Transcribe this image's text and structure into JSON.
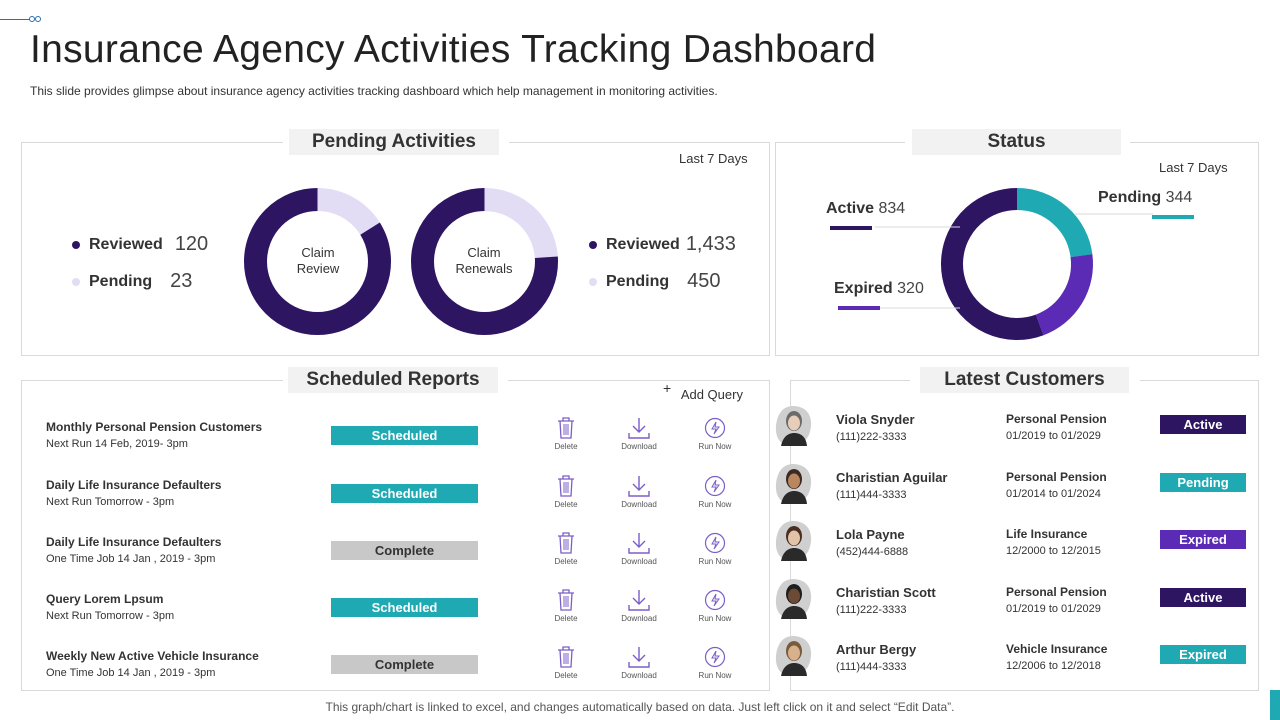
{
  "header": {
    "title": "Insurance Agency Activities Tracking Dashboard",
    "subtitle": "This slide provides  glimpse about insurance agency activities tracking dashboard which help management  in monitoring activities."
  },
  "pending": {
    "tab_label": "Pending Activities",
    "period": "Last 7 Days",
    "left": {
      "center": [
        "Claim",
        "Review"
      ],
      "items": [
        {
          "label": "Reviewed",
          "value": "120"
        },
        {
          "label": "Pending",
          "value": "23"
        }
      ],
      "reviewed_fraction": 0.839
    },
    "right": {
      "center": [
        "Claim",
        "Renewals"
      ],
      "items": [
        {
          "label": "Reviewed",
          "value": "1,433"
        },
        {
          "label": "Pending",
          "value": "450"
        }
      ],
      "reviewed_fraction": 0.761
    }
  },
  "status": {
    "tab_label": "Status",
    "period": "Last 7 Days",
    "items": [
      {
        "label": "Active",
        "value": "834",
        "count": 834
      },
      {
        "label": "Pending",
        "value": "344",
        "count": 344
      },
      {
        "label": "Expired",
        "value": "320",
        "count": 320
      }
    ]
  },
  "reports": {
    "tab_label": "Scheduled Reports",
    "add_query": "Add Query",
    "action_labels": {
      "delete": "Delete",
      "download": "Download",
      "run": "Run Now"
    },
    "rows": [
      {
        "name": "Monthly Personal Pension Customers",
        "run": "Next Run 14 Feb, 2019- 3pm",
        "status": "Scheduled"
      },
      {
        "name": "Daily Life Insurance Defaulters",
        "run": "Next Run Tomorrow - 3pm",
        "status": "Scheduled"
      },
      {
        "name": "Daily Life Insurance Defaulters",
        "run": "One Time Job 14 Jan , 2019 - 3pm",
        "status": "Complete"
      },
      {
        "name": "Query Lorem Lpsum",
        "run": "Next Run Tomorrow - 3pm",
        "status": "Scheduled"
      },
      {
        "name": "Weekly New Active Vehicle Insurance",
        "run": "One Time Job 14 Jan , 2019 - 3pm",
        "status": "Complete"
      }
    ]
  },
  "customers": {
    "tab_label": "Latest Customers",
    "rows": [
      {
        "name": "Viola Snyder",
        "phone": "(111)222-3333",
        "type": "Personal Pension",
        "range": "01/2019 to 01/2029",
        "status": "Active"
      },
      {
        "name": "Charistian Aguilar",
        "phone": "(111)444-3333",
        "type": "Personal Pension",
        "range": "01/2014 to 01/2024",
        "status": "Pending"
      },
      {
        "name": "Lola Payne",
        "phone": "(452)444-6888",
        "type": "Life Insurance",
        "range": "12/2000 to 12/2015",
        "status": "Expired"
      },
      {
        "name": "Charistian Scott",
        "phone": "(111)222-3333",
        "type": "Personal Pension",
        "range": "01/2019 to 01/2029",
        "status": "Active"
      },
      {
        "name": "Arthur Bergy",
        "phone": "(111)444-3333",
        "type": "Vehicle Insurance",
        "range": "12/2006 to 12/2018",
        "status": "Expired"
      }
    ]
  },
  "footer": {
    "note": "This graph/chart is linked to excel,  and changes automatically based on data. Just left click on it and select “Edit Data”."
  },
  "colors": {
    "dark_purple": "#2d1562",
    "light_purple": "#e3dcf5",
    "violet": "#5b2bb5",
    "teal": "#1fa9b3",
    "grey_pill": "#c8c8c8"
  }
}
